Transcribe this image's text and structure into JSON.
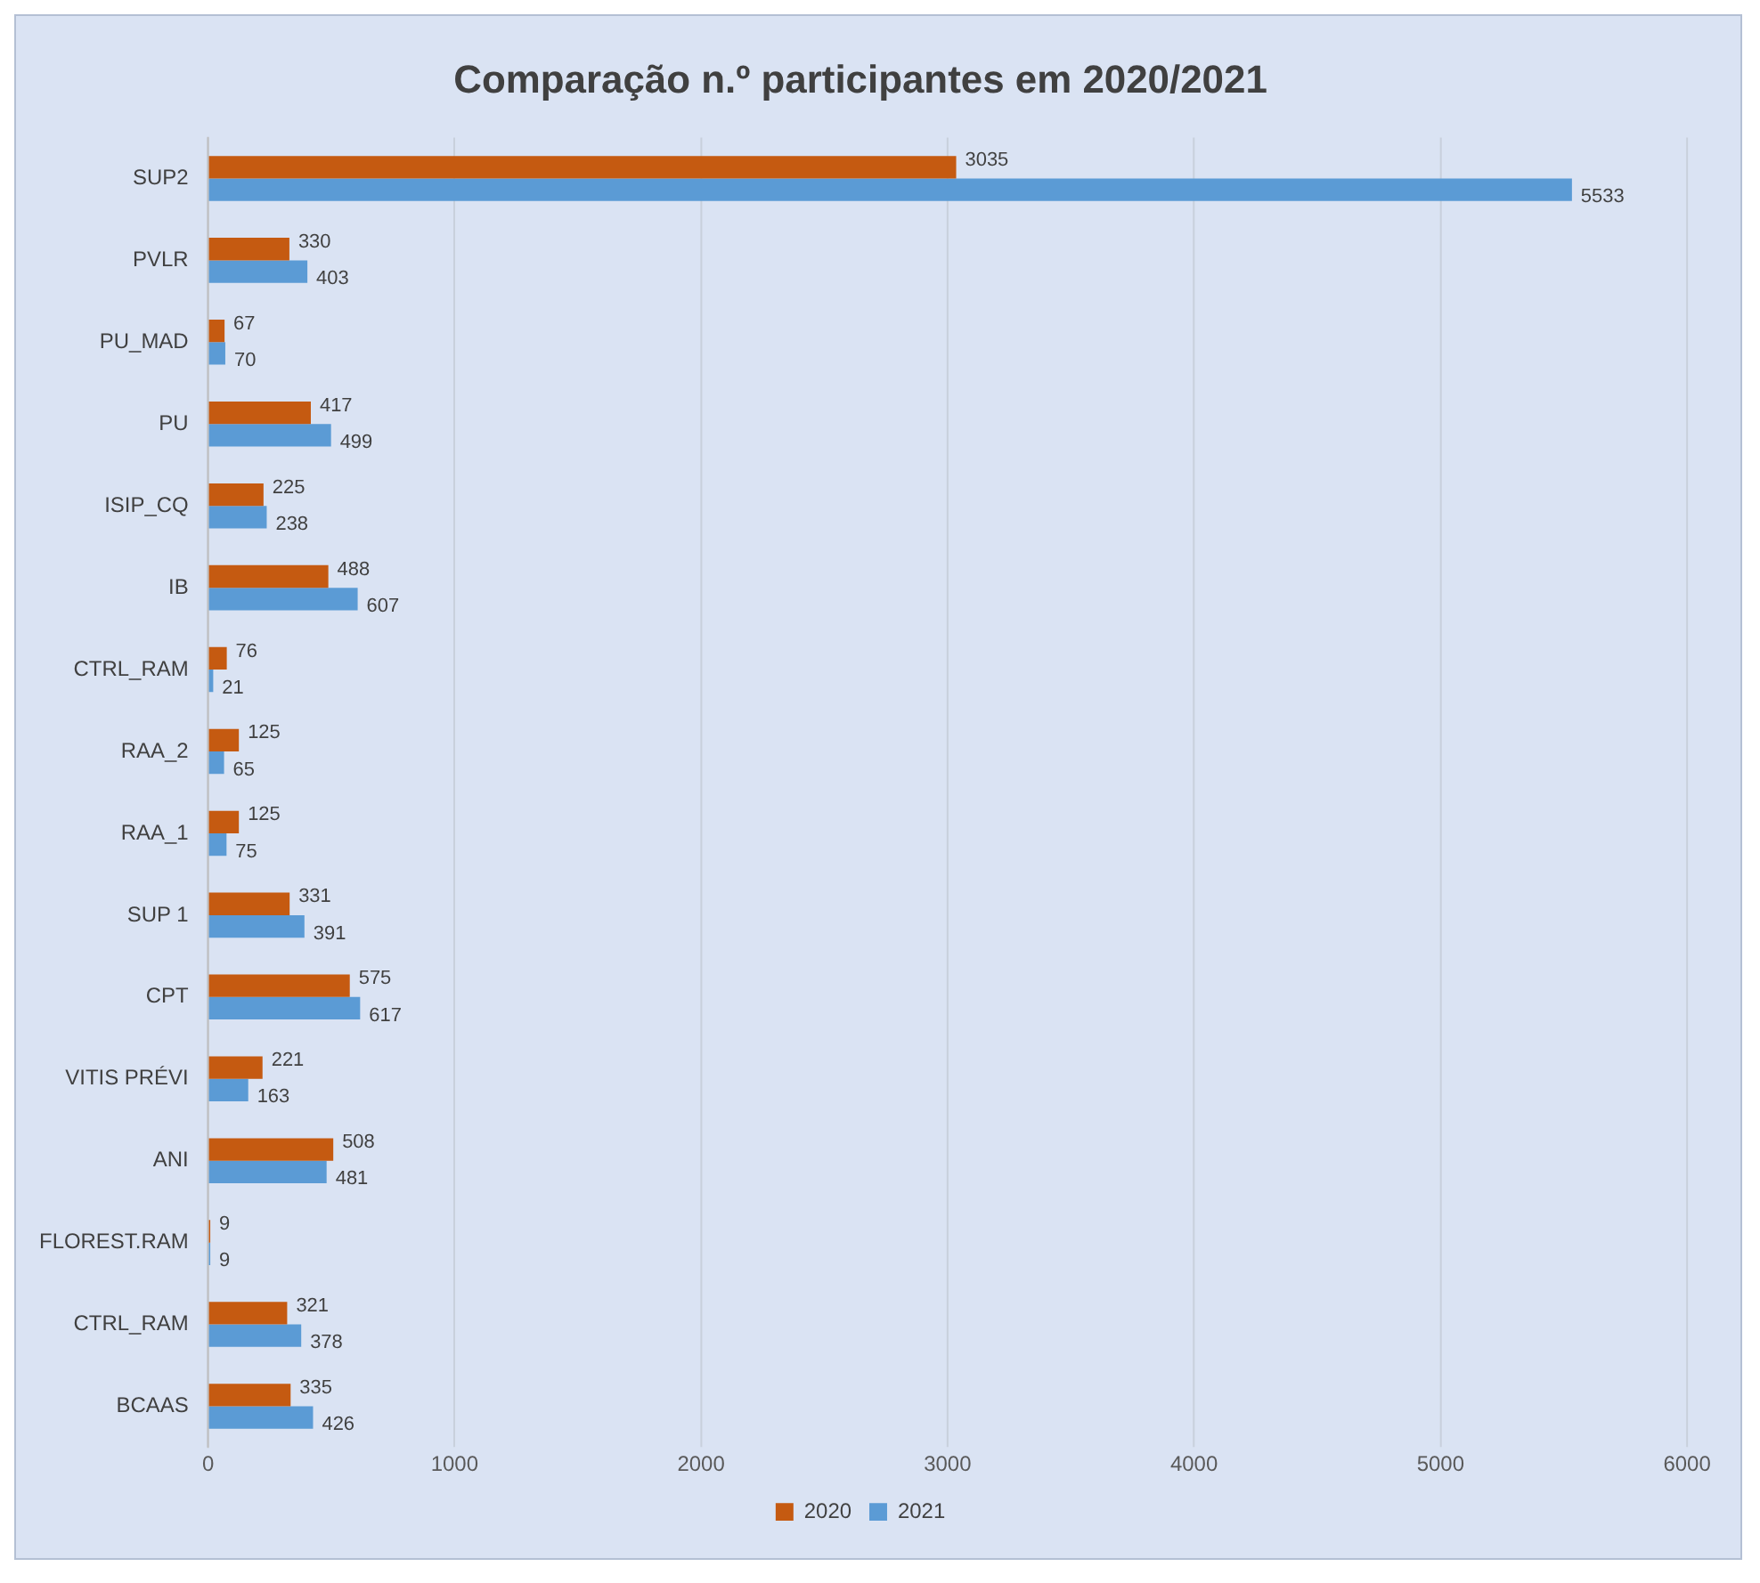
{
  "chart_data": {
    "type": "bar",
    "orientation": "horizontal",
    "title": "Comparação n.º participantes em 2020/2021",
    "categories": [
      "SUP2",
      "PVLR",
      "PU_MAD",
      "PU",
      "ISIP_CQ",
      "IB",
      "CTRL_RAM",
      "RAA_2",
      "RAA_1",
      "SUP 1",
      "CPT",
      "VITIS PRÉVI",
      "ANI",
      "FLOREST.RAM",
      "CTRL_RAM",
      "BCAAS"
    ],
    "series": [
      {
        "name": "2020",
        "color": "#c55a11",
        "values": [
          3035,
          330,
          67,
          417,
          225,
          488,
          76,
          125,
          125,
          331,
          575,
          221,
          508,
          9,
          321,
          335
        ]
      },
      {
        "name": "2021",
        "color": "#5b9bd5",
        "values": [
          5533,
          403,
          70,
          499,
          238,
          607,
          21,
          65,
          75,
          391,
          617,
          163,
          481,
          9,
          378,
          426
        ]
      }
    ],
    "xlim": [
      0,
      6000
    ],
    "xticks": [
      0,
      1000,
      2000,
      3000,
      4000,
      5000,
      6000
    ],
    "grid": "x",
    "legend": "bottom",
    "data_labels": true
  }
}
